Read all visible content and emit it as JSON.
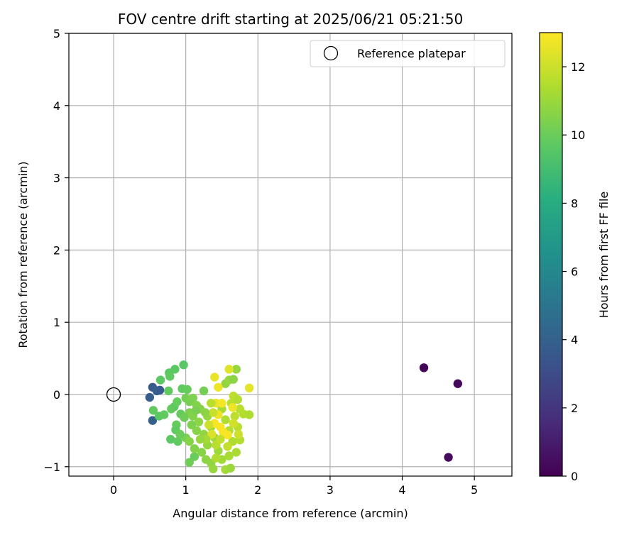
{
  "chart_data": {
    "type": "scatter",
    "title": "FOV centre drift starting at 2025/06/21 05:21:50",
    "xlabel": "Angular distance from reference (arcmin)",
    "ylabel": "Rotation from reference (arcmin)",
    "xlim": [
      -0.62,
      5.52
    ],
    "ylim": [
      -1.13,
      5.0
    ],
    "xticks": [
      0,
      1,
      2,
      3,
      4,
      5
    ],
    "yticks": [
      -1,
      0,
      1,
      2,
      3,
      4,
      5
    ],
    "grid": true,
    "legend": {
      "placement": "top-right",
      "entries": [
        {
          "label": "Reference platepar",
          "marker": "open-circle",
          "x": 0,
          "y": 0
        }
      ]
    },
    "colorbar": {
      "label": "Hours from first FF file",
      "colormap": "viridis",
      "range": [
        0,
        13
      ],
      "ticks": [
        0,
        2,
        4,
        6,
        8,
        10,
        12
      ]
    },
    "series": [
      {
        "columns": [
          "x",
          "y",
          "hours"
        ],
        "points": [
          [
            4.3,
            0.37,
            0.2
          ],
          [
            4.77,
            0.15,
            0.3
          ],
          [
            4.64,
            -0.87,
            0.4
          ],
          [
            0.54,
            0.1,
            3.6
          ],
          [
            0.5,
            -0.04,
            3.8
          ],
          [
            0.6,
            0.05,
            3.9
          ],
          [
            0.64,
            0.06,
            3.7
          ],
          [
            0.54,
            -0.36,
            4.0
          ],
          [
            0.97,
            0.41,
            9.6
          ],
          [
            0.85,
            0.35,
            9.7
          ],
          [
            0.77,
            0.3,
            9.7
          ],
          [
            0.78,
            0.25,
            9.8
          ],
          [
            0.65,
            0.2,
            9.7
          ],
          [
            0.95,
            0.08,
            9.8
          ],
          [
            1.02,
            0.07,
            9.9
          ],
          [
            0.76,
            0.05,
            9.8
          ],
          [
            0.55,
            -0.22,
            9.8
          ],
          [
            0.63,
            -0.3,
            9.7
          ],
          [
            0.7,
            -0.28,
            9.8
          ],
          [
            0.8,
            -0.2,
            9.9
          ],
          [
            0.84,
            -0.17,
            9.8
          ],
          [
            0.88,
            -0.1,
            9.9
          ],
          [
            0.93,
            -0.27,
            9.9
          ],
          [
            0.87,
            -0.42,
            9.9
          ],
          [
            0.86,
            -0.49,
            9.8
          ],
          [
            0.79,
            -0.62,
            9.7
          ],
          [
            0.89,
            -0.65,
            9.8
          ],
          [
            1.05,
            -0.94,
            10.1
          ],
          [
            1.12,
            -0.86,
            10.0
          ],
          [
            1.0,
            -0.05,
            10.2
          ],
          [
            1.05,
            -0.1,
            10.3
          ],
          [
            1.1,
            -0.05,
            10.4
          ],
          [
            1.15,
            -0.15,
            10.5
          ],
          [
            1.05,
            -0.25,
            10.4
          ],
          [
            1.1,
            -0.3,
            10.5
          ],
          [
            1.0,
            -0.6,
            10.3
          ],
          [
            1.05,
            -0.65,
            10.6
          ],
          [
            1.12,
            -0.75,
            10.5
          ],
          [
            1.25,
            0.05,
            10.2
          ],
          [
            1.2,
            -0.2,
            10.6
          ],
          [
            1.18,
            -0.38,
            10.7
          ],
          [
            1.15,
            -0.5,
            10.6
          ],
          [
            1.25,
            -0.55,
            10.8
          ],
          [
            1.3,
            -0.7,
            10.9
          ],
          [
            1.28,
            -0.9,
            10.7
          ],
          [
            1.35,
            -0.95,
            10.8
          ],
          [
            1.38,
            -1.03,
            10.9
          ],
          [
            1.3,
            -0.3,
            10.9
          ],
          [
            1.35,
            -0.45,
            11.0
          ],
          [
            1.4,
            -0.6,
            11.1
          ],
          [
            1.45,
            -0.78,
            11.0
          ],
          [
            1.5,
            -0.9,
            11.1
          ],
          [
            1.55,
            -1.04,
            11.2
          ],
          [
            1.62,
            -1.02,
            11.0
          ],
          [
            1.6,
            -0.85,
            11.3
          ],
          [
            1.55,
            0.15,
            10.8
          ],
          [
            1.6,
            0.2,
            10.9
          ],
          [
            1.66,
            0.21,
            10.7
          ],
          [
            1.7,
            0.35,
            10.9
          ],
          [
            1.5,
            -0.2,
            11.3
          ],
          [
            1.55,
            -0.35,
            11.4
          ],
          [
            1.6,
            -0.5,
            11.5
          ],
          [
            1.65,
            -0.65,
            11.4
          ],
          [
            1.7,
            -0.8,
            11.3
          ],
          [
            1.75,
            -0.63,
            11.5
          ],
          [
            1.72,
            -0.45,
            11.6
          ],
          [
            1.68,
            -0.3,
            11.7
          ],
          [
            1.75,
            -0.2,
            11.6
          ],
          [
            1.8,
            -0.27,
            11.5
          ],
          [
            1.88,
            -0.28,
            11.4
          ],
          [
            1.63,
            -0.12,
            11.6
          ],
          [
            1.66,
            -0.02,
            11.7
          ],
          [
            1.72,
            -0.07,
            11.5
          ],
          [
            1.4,
            0.24,
            12.6
          ],
          [
            1.45,
            0.1,
            12.7
          ],
          [
            1.6,
            0.35,
            12.4
          ],
          [
            1.88,
            0.09,
            12.5
          ],
          [
            1.42,
            -0.12,
            12.6
          ],
          [
            1.5,
            -0.12,
            12.8
          ],
          [
            1.45,
            -0.28,
            12.7
          ],
          [
            1.4,
            -0.4,
            12.9
          ],
          [
            1.52,
            -0.52,
            12.8
          ],
          [
            1.58,
            -0.56,
            12.9
          ],
          [
            1.65,
            -0.18,
            12.7
          ],
          [
            1.48,
            -0.45,
            12.9
          ],
          [
            1.36,
            -0.55,
            12.3
          ],
          [
            1.32,
            -0.42,
            12.0
          ],
          [
            1.28,
            -0.62,
            11.2
          ],
          [
            1.22,
            -0.8,
            10.6
          ],
          [
            1.42,
            -0.7,
            11.6
          ],
          [
            1.48,
            -0.62,
            11.8
          ],
          [
            1.38,
            -0.25,
            11.9
          ],
          [
            1.58,
            -0.72,
            11.8
          ],
          [
            1.66,
            -0.4,
            12.1
          ],
          [
            1.73,
            -0.55,
            12.0
          ],
          [
            1.35,
            -0.12,
            11.6
          ],
          [
            1.2,
            -0.62,
            10.9
          ],
          [
            1.08,
            -0.42,
            10.4
          ],
          [
            1.14,
            -0.22,
            10.3
          ],
          [
            0.98,
            -0.32,
            10.1
          ],
          [
            0.92,
            -0.55,
            10.0
          ],
          [
            1.27,
            -0.25,
            10.7
          ],
          [
            1.42,
            -0.88,
            11.4
          ]
        ]
      }
    ]
  }
}
